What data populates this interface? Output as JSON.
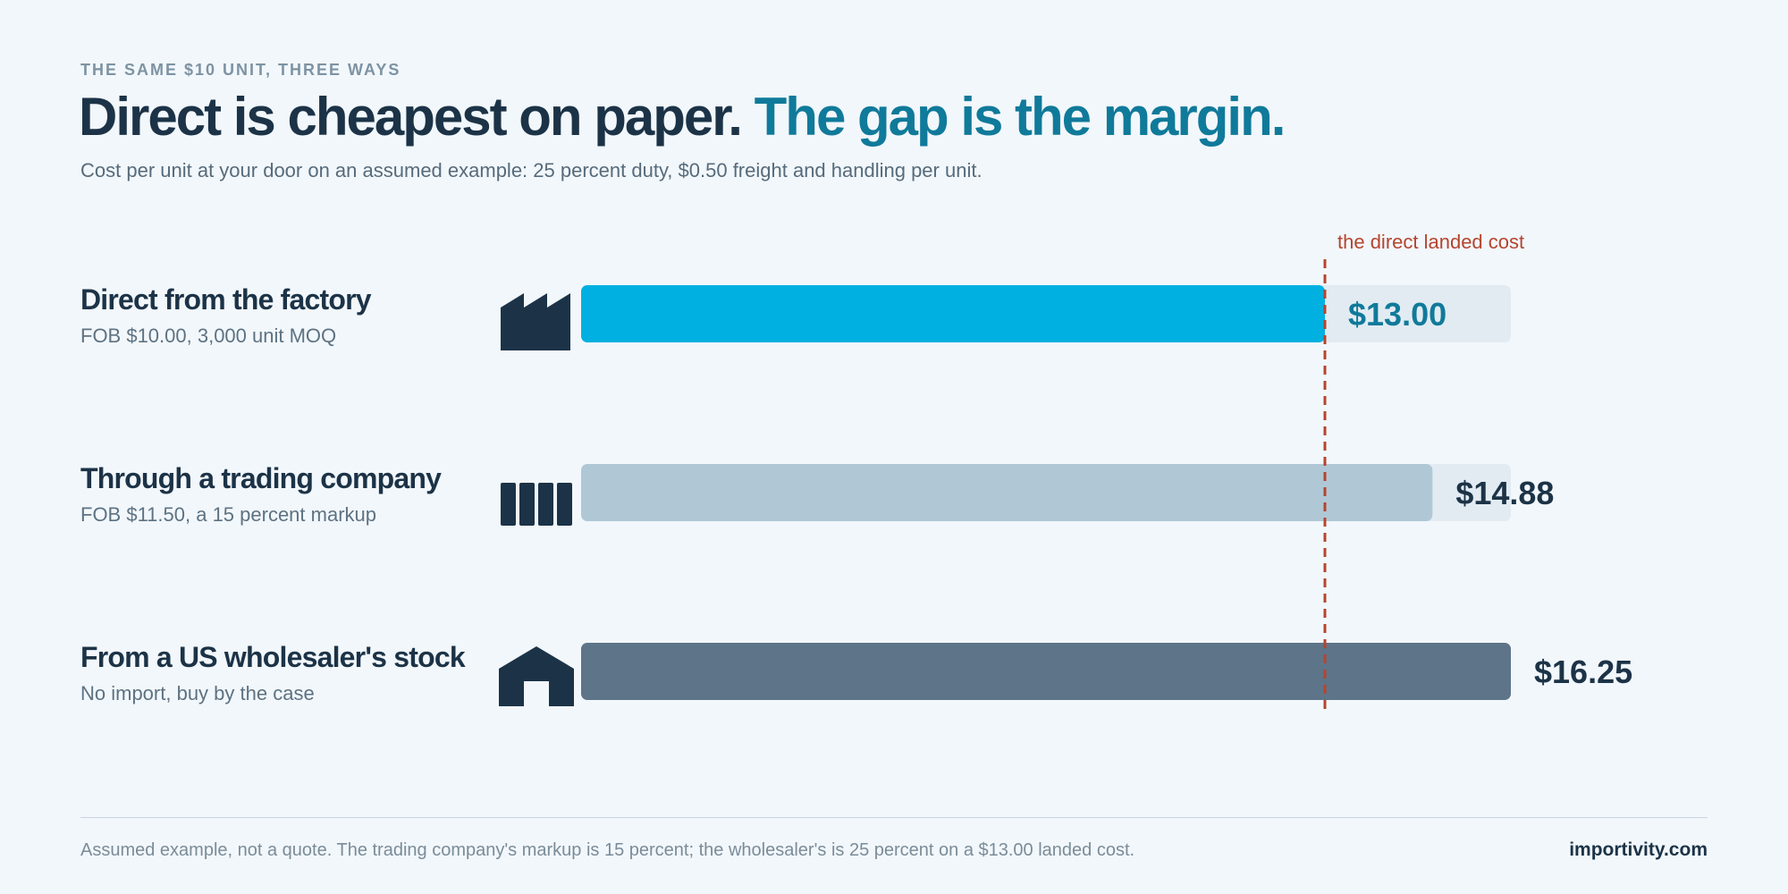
{
  "header": {
    "eyebrow": "THE SAME $10 UNIT, THREE WAYS",
    "headline_main": "Direct is cheapest on paper.",
    "headline_accent": "The gap is the margin.",
    "subtitle": "Cost per unit at your door on an assumed example: 25 percent duty, $0.50 freight and handling per unit."
  },
  "colors": {
    "background": "#f2f7fb",
    "text_dark": "#1c3347",
    "accent_teal": "#107a9a",
    "bar_direct": "#00b0e0",
    "bar_trading": "#b0c8d6",
    "bar_wholesaler": "#5e7489",
    "track": "#e2ebf2",
    "reference_line": "#b5452e"
  },
  "chart_data": {
    "type": "bar",
    "orientation": "horizontal",
    "categories": [
      "Direct from the factory",
      "Through a trading company",
      "From a US wholesaler's stock"
    ],
    "values": [
      13.0,
      14.88,
      16.25
    ],
    "value_labels": [
      "$13.00",
      "$14.88",
      "$16.25"
    ],
    "subtitles": [
      "FOB $10.00, 3,000 unit MOQ",
      "FOB $11.50, a 15 percent markup",
      "No import, buy by the case"
    ],
    "icons": [
      "factory-icon",
      "shipping-containers-icon",
      "warehouse-icon"
    ],
    "xlim": [
      0,
      16.25
    ],
    "reference": {
      "value": 13.0,
      "label": "the direct landed cost"
    },
    "grid": false,
    "legend": "none"
  },
  "footer": {
    "note": "Assumed example, not a quote. The trading company's markup is 15 percent; the wholesaler's is 25 percent on a $13.00 landed cost.",
    "brand": "importivity.com"
  }
}
